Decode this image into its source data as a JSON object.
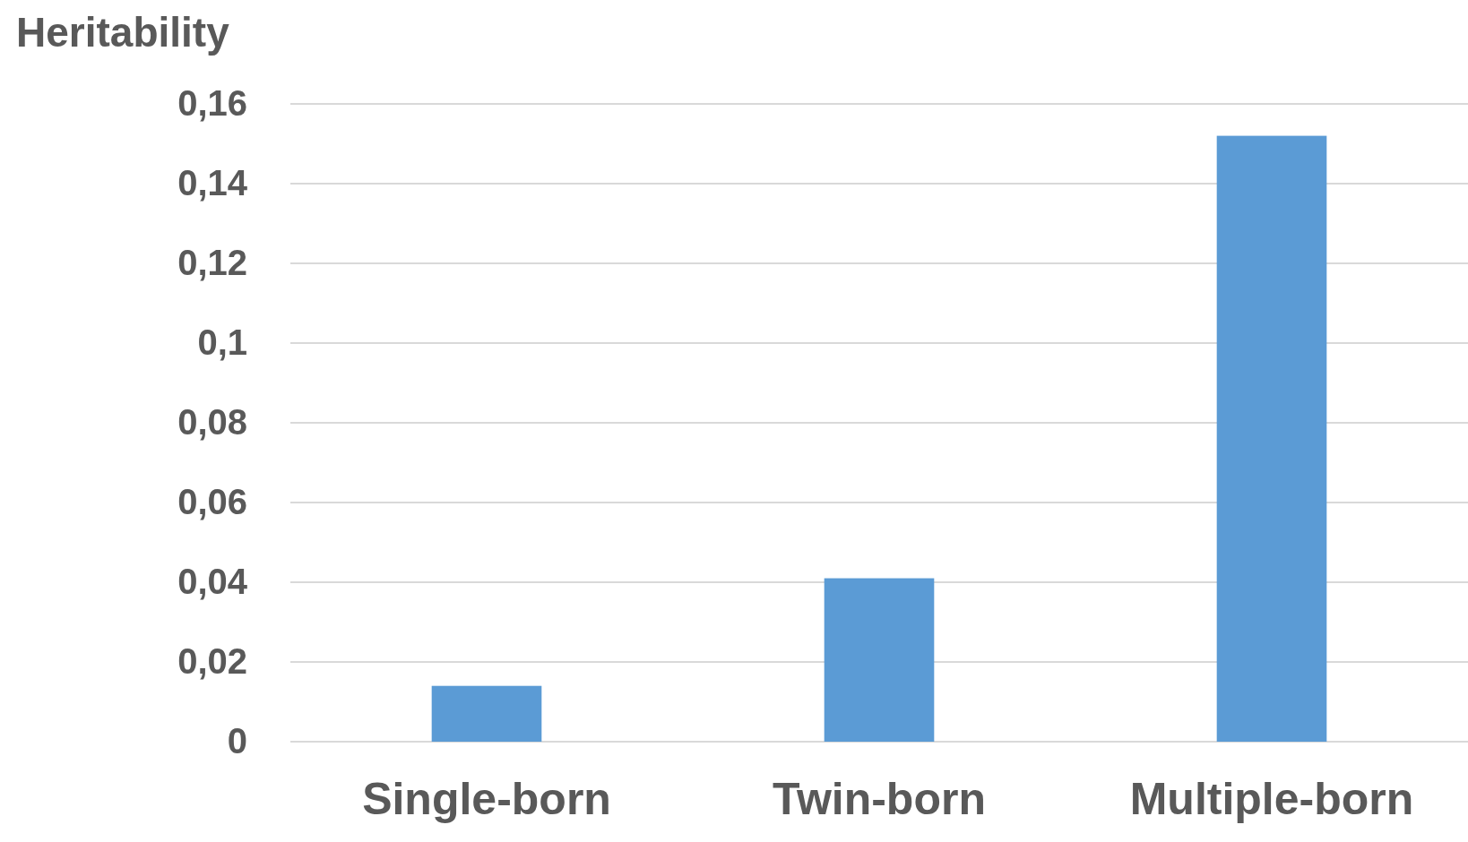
{
  "chart_data": {
    "type": "bar",
    "ylabel": "Heritability",
    "categories": [
      "Single-born",
      "Twin-born",
      "Multiple-born"
    ],
    "values": [
      0.014,
      0.041,
      0.152
    ],
    "color": "#5b9bd5",
    "ylim": [
      0,
      0.16
    ],
    "yticks": [
      0,
      {
        "value": 0.02,
        "label": "0,02"
      },
      {
        "value": 0.04,
        "label": "0,04"
      },
      {
        "value": 0.06,
        "label": "0,06"
      },
      {
        "value": 0.08,
        "label": "0,08"
      },
      {
        "value": 0.1,
        "label": "0,1"
      },
      {
        "value": 0.12,
        "label": "0,12"
      },
      {
        "value": 0.14,
        "label": "0,14"
      },
      {
        "value": 0.16,
        "label": "0,16"
      }
    ],
    "grid": "y"
  }
}
